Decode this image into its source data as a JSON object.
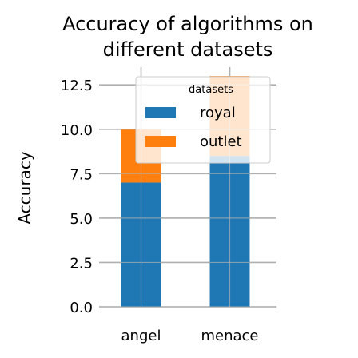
{
  "chart_data": {
    "type": "bar",
    "stacked": true,
    "title": "Accuracy of algorithms on different datasets",
    "xlabel": "",
    "ylabel": "Accuracy",
    "categories": [
      "angel",
      "menace"
    ],
    "series": [
      {
        "name": "royal",
        "values": [
          7,
          8.5
        ],
        "color": "#1f77b4"
      },
      {
        "name": "outlet",
        "values": [
          3,
          4.5
        ],
        "color": "#ff7f0e"
      }
    ],
    "ylim": [
      0,
      13.5
    ],
    "yticks": [
      0.0,
      2.5,
      5.0,
      7.5,
      10.0,
      12.5
    ],
    "ytick_labels": [
      "0.0",
      "2.5",
      "5.0",
      "7.5",
      "10.0",
      "12.5"
    ],
    "grid": true,
    "legend": {
      "title": "datasets",
      "placement": "top-right"
    }
  }
}
